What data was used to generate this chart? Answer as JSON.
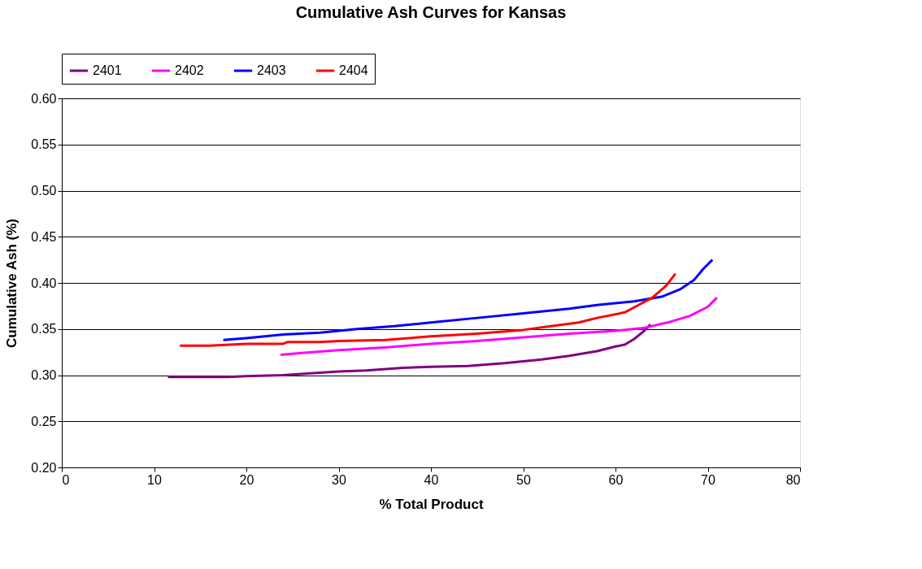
{
  "chart_data": {
    "type": "line",
    "title": "Cumulative Ash Curves for Kansas",
    "xlabel": "% Total Product",
    "ylabel": "Cumulative Ash (%)",
    "xlim": [
      0,
      80
    ],
    "xticks": [
      0,
      10,
      20,
      30,
      40,
      50,
      60,
      70,
      80
    ],
    "ylim": [
      0.2,
      0.6
    ],
    "yticks": [
      {
        "value": 0.2,
        "label": "0.20"
      },
      {
        "value": 0.25,
        "label": "0.25"
      },
      {
        "value": 0.3,
        "label": "0.30"
      },
      {
        "value": 0.35,
        "label": "0.35"
      },
      {
        "value": 0.4,
        "label": "0.40"
      },
      {
        "value": 0.45,
        "label": "0.45"
      },
      {
        "value": 0.5,
        "label": "0.50"
      },
      {
        "value": 0.55,
        "label": "0.55"
      },
      {
        "value": 0.6,
        "label": "0.60"
      }
    ],
    "grid": "y",
    "legend": "top",
    "marker": "none",
    "line_style": "solid",
    "series": [
      {
        "name": "2401",
        "color": "#800080",
        "x": [
          11.5,
          18,
          20,
          24,
          30,
          33,
          37,
          40,
          44,
          48,
          52,
          55,
          58,
          60,
          61,
          62,
          63,
          63.8
        ],
        "values": [
          0.298,
          0.298,
          0.299,
          0.3,
          0.304,
          0.305,
          0.308,
          0.309,
          0.31,
          0.313,
          0.317,
          0.321,
          0.326,
          0.331,
          0.333,
          0.339,
          0.347,
          0.355
        ]
      },
      {
        "name": "2402",
        "color": "#ff00ff",
        "x": [
          23.7,
          26,
          30,
          35,
          40,
          45,
          50,
          55,
          60,
          63,
          66,
          68,
          70,
          71
        ],
        "values": [
          0.322,
          0.324,
          0.327,
          0.33,
          0.334,
          0.337,
          0.341,
          0.345,
          0.348,
          0.351,
          0.358,
          0.364,
          0.374,
          0.384
        ]
      },
      {
        "name": "2403",
        "color": "#0000ff",
        "x": [
          17.5,
          20,
          24,
          28,
          32,
          36,
          40,
          45,
          50,
          55,
          58,
          62,
          65,
          67,
          68.5,
          69.5,
          70.5
        ],
        "values": [
          0.338,
          0.34,
          0.344,
          0.346,
          0.35,
          0.353,
          0.357,
          0.362,
          0.367,
          0.372,
          0.376,
          0.38,
          0.385,
          0.393,
          0.403,
          0.415,
          0.425
        ]
      },
      {
        "name": "2404",
        "color": "#ff0000",
        "x": [
          12.8,
          16,
          20,
          24,
          24.5,
          28,
          30,
          35,
          40,
          45,
          50,
          53,
          56,
          58,
          61,
          62.5,
          64,
          65.5,
          66.5
        ],
        "values": [
          0.332,
          0.332,
          0.334,
          0.334,
          0.336,
          0.336,
          0.337,
          0.338,
          0.342,
          0.345,
          0.349,
          0.353,
          0.357,
          0.362,
          0.368,
          0.376,
          0.384,
          0.397,
          0.41
        ]
      }
    ]
  }
}
